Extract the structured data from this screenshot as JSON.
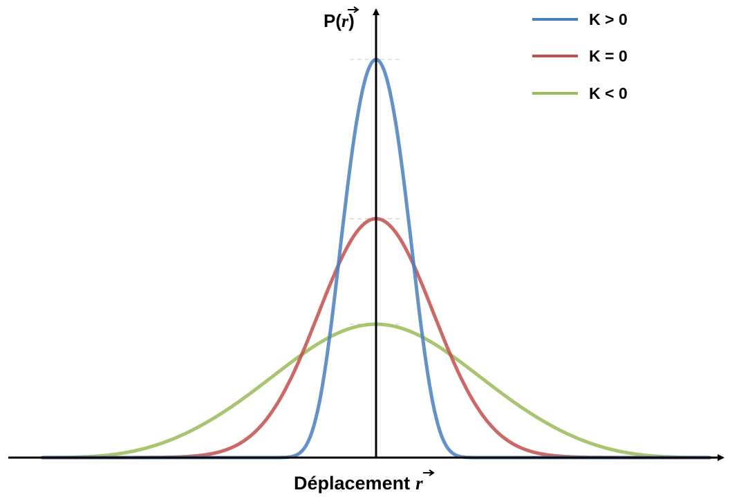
{
  "chart_data": {
    "type": "line",
    "xlabel": "Déplacement",
    "xlabel_vector": "r",
    "ylabel": "P(",
    "ylabel_vector": "r",
    "ylabel_close": ")",
    "xlim": [
      -4.3,
      4.3
    ],
    "ylim": [
      0,
      1.0
    ],
    "grid": false,
    "legend_position": "top-right",
    "series": [
      {
        "name": "K > 0",
        "color": "#4a7ebf",
        "peak": 1.0,
        "sigma": 0.4,
        "shape": "quartic-exponential"
      },
      {
        "name": "K = 0",
        "color": "#c0504d",
        "peak": 0.6,
        "sigma": 0.67,
        "shape": "gaussian"
      },
      {
        "name": "K < 0",
        "color": "#9bbb59",
        "peak": 0.335,
        "sigma": 1.2,
        "shape": "wide"
      }
    ]
  }
}
